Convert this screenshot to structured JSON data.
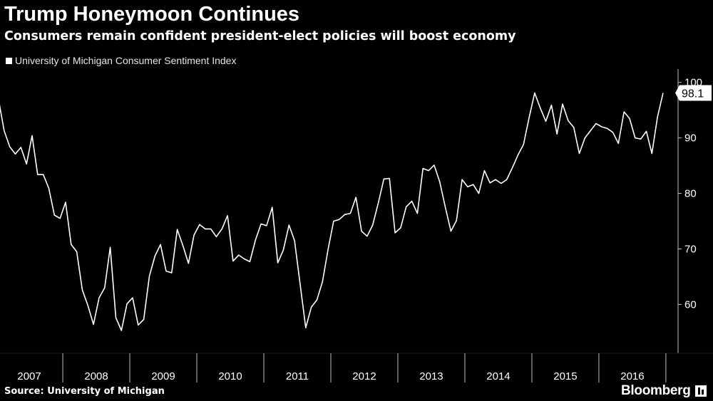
{
  "title": "Trump Honeymoon Continues",
  "subtitle": "Consumers remain confident president-elect policies will boost economy",
  "source": "Source: University of Michigan",
  "brand": "Bloomberg",
  "colors": {
    "background": "#000000",
    "line": "#ffffff",
    "axis": "#bfbfbf"
  },
  "chart_data": {
    "type": "line",
    "title": "Trump Honeymoon Continues",
    "series": [
      {
        "name": "University of Michigan Consumer Sentiment Index",
        "start": "2007-01",
        "frequency": "monthly",
        "values": [
          96.9,
          91.3,
          88.4,
          87.1,
          88.3,
          85.3,
          90.4,
          83.4,
          83.4,
          80.9,
          76.1,
          75.5,
          78.4,
          70.8,
          69.5,
          62.6,
          59.8,
          56.4,
          61.2,
          63.0,
          70.3,
          57.6,
          55.3,
          60.1,
          61.2,
          56.3,
          57.3,
          65.1,
          68.7,
          70.8,
          66.0,
          65.7,
          73.5,
          70.6,
          67.4,
          72.5,
          74.4,
          73.6,
          73.6,
          72.2,
          73.6,
          76.0,
          67.8,
          68.9,
          68.2,
          67.7,
          71.6,
          74.5,
          74.2,
          77.5,
          67.5,
          69.8,
          74.3,
          71.5,
          63.7,
          55.8,
          59.5,
          60.8,
          64.1,
          69.9,
          75.0,
          75.3,
          76.2,
          76.4,
          79.3,
          73.2,
          72.3,
          74.3,
          78.3,
          82.6,
          82.7,
          72.9,
          73.8,
          77.6,
          78.6,
          76.4,
          84.5,
          84.1,
          85.1,
          82.1,
          77.5,
          73.2,
          75.1,
          82.5,
          81.2,
          81.6,
          80.0,
          84.1,
          81.9,
          82.5,
          81.8,
          82.5,
          84.6,
          86.9,
          88.8,
          93.6,
          98.1,
          95.4,
          93.0,
          95.9,
          90.7,
          96.1,
          93.1,
          91.9,
          87.2,
          90.0,
          91.3,
          92.6,
          92.0,
          91.7,
          91.0,
          89.0,
          94.7,
          93.5,
          90.0,
          89.8,
          91.2,
          87.2,
          93.8,
          98.1
        ]
      }
    ],
    "xlabel": "",
    "ylabel": "",
    "years": [
      "2007",
      "2008",
      "2009",
      "2010",
      "2011",
      "2012",
      "2013",
      "2014",
      "2015",
      "2016"
    ],
    "yticks": [
      60,
      70,
      80,
      90,
      100
    ],
    "ylim": [
      51.2,
      102.4
    ],
    "last_value_label": "98.1",
    "legend": "top-left",
    "grid": false
  }
}
